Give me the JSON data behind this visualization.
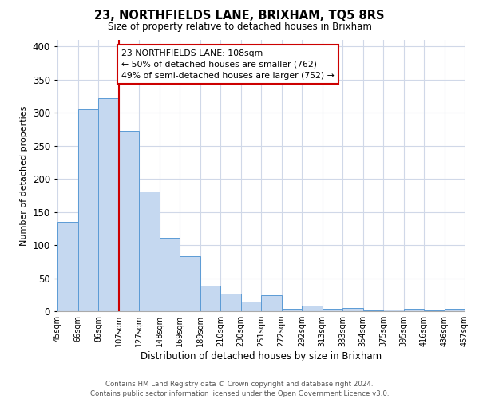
{
  "title": "23, NORTHFIELDS LANE, BRIXHAM, TQ5 8RS",
  "subtitle": "Size of property relative to detached houses in Brixham",
  "xlabel": "Distribution of detached houses by size in Brixham",
  "ylabel": "Number of detached properties",
  "bar_values": [
    135,
    305,
    322,
    273,
    181,
    111,
    83,
    38,
    27,
    15,
    24,
    4,
    9,
    4,
    5,
    1,
    3,
    4,
    1,
    4
  ],
  "bar_labels": [
    "45sqm",
    "66sqm",
    "86sqm",
    "107sqm",
    "127sqm",
    "148sqm",
    "169sqm",
    "189sqm",
    "210sqm",
    "230sqm",
    "251sqm",
    "272sqm",
    "292sqm",
    "313sqm",
    "333sqm",
    "354sqm",
    "375sqm",
    "395sqm",
    "416sqm",
    "436sqm",
    "457sqm"
  ],
  "bar_color": "#c5d8f0",
  "bar_edge_color": "#5b9bd5",
  "highlight_line_color": "#cc0000",
  "annotation_text": "23 NORTHFIELDS LANE: 108sqm\n← 50% of detached houses are smaller (762)\n49% of semi-detached houses are larger (752) →",
  "annotation_box_color": "#ffffff",
  "annotation_box_edge_color": "#cc0000",
  "ylim": [
    0,
    410
  ],
  "yticks": [
    0,
    50,
    100,
    150,
    200,
    250,
    300,
    350,
    400
  ],
  "footer_line1": "Contains HM Land Registry data © Crown copyright and database right 2024.",
  "footer_line2": "Contains public sector information licensed under the Open Government Licence v3.0.",
  "background_color": "#ffffff",
  "grid_color": "#d0d8e8"
}
